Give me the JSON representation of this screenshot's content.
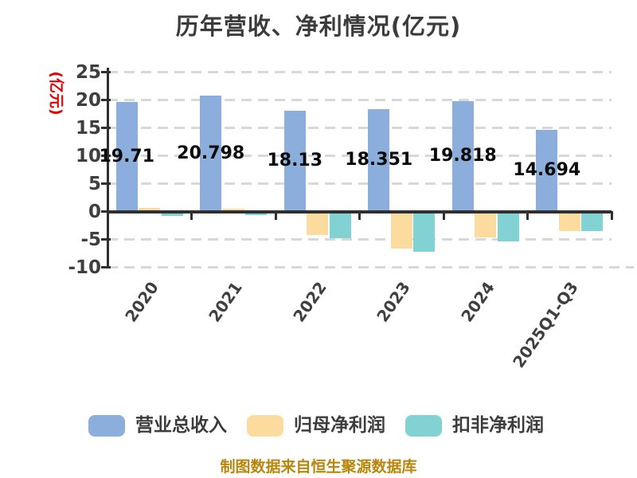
{
  "title": "历年营收、净利情况(亿元)",
  "y_axis": {
    "unit_label": "(亿元)",
    "unit_label_color": "#e60000",
    "ticks": [
      25,
      20,
      15,
      10,
      5,
      0,
      -5,
      -10
    ]
  },
  "footer": "制图数据来自恒生聚源数据库",
  "legend": [
    {
      "label": "营业总收入",
      "color": "#8caedc"
    },
    {
      "label": "归母净利润",
      "color": "#fbdc9e"
    },
    {
      "label": "扣非净利润",
      "color": "#82d2d4"
    }
  ],
  "colors": {
    "background": "#ffffff",
    "axis": "#303030",
    "gridline": "#d8d8d8",
    "title_text": "#3b3b3b",
    "tick_text": "#3f3f3f",
    "bar_label_text": "#0b0b0b",
    "footer_text": "#b8860b"
  },
  "chart_data": {
    "type": "bar",
    "title": "历年营收、净利情况(亿元)",
    "ylabel": "(亿元)",
    "xlabel": "",
    "ylim": [
      -10,
      25
    ],
    "grid": "horizontal dashed",
    "legend_position": "bottom",
    "categories": [
      "2020",
      "2021",
      "2022",
      "2023",
      "2024",
      "2025Q1-Q3"
    ],
    "series": [
      {
        "name": "营业总收入",
        "color": "#8caedc",
        "values": [
          19.71,
          20.798,
          18.13,
          18.351,
          19.818,
          14.694
        ],
        "bar_labels": [
          "19.71",
          "20.798",
          "18.13",
          "18.351",
          "19.818",
          "14.694"
        ]
      },
      {
        "name": "归母净利润",
        "color": "#fbdc9e",
        "values": [
          0.7,
          0.45,
          -4.2,
          -6.7,
          -4.7,
          -3.55
        ]
      },
      {
        "name": "扣非净利润",
        "color": "#82d2d4",
        "values": [
          -0.75,
          -0.65,
          -4.8,
          -7.2,
          -5.35,
          -3.5
        ]
      }
    ]
  }
}
